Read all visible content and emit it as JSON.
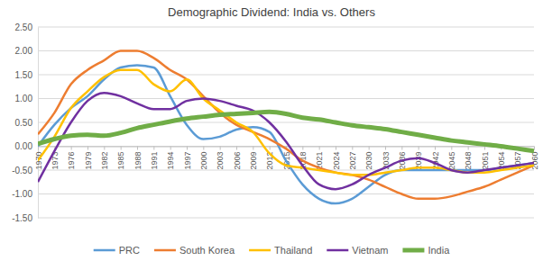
{
  "chart_data": {
    "type": "line",
    "title": "Demographic Dividend: India vs. Others",
    "x": [
      1970,
      1973,
      1976,
      1979,
      1982,
      1985,
      1988,
      1991,
      1994,
      1997,
      2000,
      2003,
      2006,
      2009,
      2012,
      2015,
      2018,
      2021,
      2024,
      2027,
      2030,
      2033,
      2036,
      2039,
      2042,
      2045,
      2048,
      2051,
      2054,
      2057,
      2060
    ],
    "xlim": [
      1970,
      2060
    ],
    "xticks": [
      1970,
      1973,
      1976,
      1979,
      1982,
      1985,
      1988,
      1991,
      1994,
      1997,
      2000,
      2003,
      2006,
      2009,
      2012,
      2015,
      2018,
      2021,
      2024,
      2027,
      2030,
      2033,
      2036,
      2039,
      2042,
      2045,
      2048,
      2051,
      2054,
      2057,
      2060
    ],
    "ylim": [
      -1.5,
      2.5
    ],
    "yticks": [
      {
        "value": -1.5,
        "label": "-1.50"
      },
      {
        "value": -1.0,
        "label": "-1.00"
      },
      {
        "value": -0.5,
        "label": "-0.50"
      },
      {
        "value": 0,
        "label": "0.00"
      },
      {
        "value": 0.5,
        "label": "0.50"
      },
      {
        "value": 1.0,
        "label": "1.00"
      },
      {
        "value": 1.5,
        "label": "1.50"
      },
      {
        "value": 2.0,
        "label": "2.00"
      },
      {
        "value": 2.5,
        "label": "2.50"
      }
    ],
    "grid": true,
    "legend": "bottom",
    "series": [
      {
        "name": "PRC",
        "color": "#5b9bd5",
        "values": [
          0.0,
          0.45,
          0.8,
          1.05,
          1.4,
          1.65,
          1.7,
          1.65,
          1.05,
          0.45,
          0.15,
          0.2,
          0.35,
          0.4,
          0.3,
          -0.3,
          -0.8,
          -1.1,
          -1.2,
          -1.1,
          -0.85,
          -0.6,
          -0.5,
          -0.5,
          -0.5,
          -0.5,
          -0.5,
          -0.5,
          -0.45,
          -0.4,
          -0.35
        ]
      },
      {
        "name": "South Korea",
        "color": "#ed7d31",
        "values": [
          0.25,
          0.7,
          1.3,
          1.6,
          1.8,
          2.0,
          2.0,
          1.85,
          1.6,
          1.4,
          1.05,
          0.7,
          0.45,
          0.3,
          0.15,
          -0.05,
          -0.3,
          -0.45,
          -0.55,
          -0.6,
          -0.7,
          -0.85,
          -1.0,
          -1.1,
          -1.1,
          -1.05,
          -0.95,
          -0.85,
          -0.7,
          -0.55,
          -0.4
        ]
      },
      {
        "name": "Thailand",
        "color": "#ffc000",
        "values": [
          -0.3,
          0.2,
          0.8,
          1.15,
          1.45,
          1.6,
          1.6,
          1.3,
          1.15,
          1.4,
          1.0,
          0.75,
          0.5,
          0.3,
          -0.15,
          -0.4,
          -0.45,
          -0.5,
          -0.55,
          -0.6,
          -0.6,
          -0.55,
          -0.5,
          -0.45,
          -0.45,
          -0.5,
          -0.55,
          -0.55,
          -0.5,
          -0.45,
          -0.4
        ]
      },
      {
        "name": "Vietnam",
        "color": "#7030a0",
        "values": [
          -0.75,
          -0.1,
          0.5,
          0.95,
          1.12,
          1.05,
          0.9,
          0.78,
          0.78,
          0.95,
          1.0,
          0.95,
          0.85,
          0.75,
          0.5,
          0.1,
          -0.4,
          -0.8,
          -0.9,
          -0.8,
          -0.6,
          -0.45,
          -0.3,
          -0.25,
          -0.35,
          -0.5,
          -0.55,
          -0.5,
          -0.45,
          -0.4,
          -0.35
        ]
      },
      {
        "name": "India",
        "color": "#70ad47",
        "values": [
          0.05,
          0.15,
          0.22,
          0.24,
          0.22,
          0.28,
          0.38,
          0.45,
          0.52,
          0.58,
          0.62,
          0.66,
          0.68,
          0.7,
          0.72,
          0.68,
          0.6,
          0.56,
          0.5,
          0.44,
          0.4,
          0.36,
          0.3,
          0.24,
          0.18,
          0.12,
          0.08,
          0.04,
          0.0,
          -0.05,
          -0.1
        ]
      }
    ]
  }
}
